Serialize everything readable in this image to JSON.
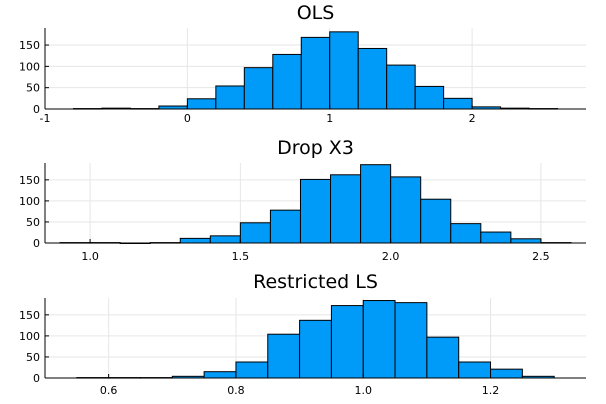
{
  "chart_data": [
    {
      "type": "bar",
      "title": "OLS",
      "xlabel": "",
      "ylabel": "",
      "xlim": [
        -1.0,
        2.8
      ],
      "ylim": [
        0,
        190
      ],
      "xticks": [
        -1,
        0,
        1,
        2
      ],
      "xtick_labels": [
        "-1",
        "0",
        "1",
        "2"
      ],
      "yticks": [
        0,
        50,
        100,
        150
      ],
      "ytick_labels": [
        "0",
        "50",
        "100",
        "150"
      ],
      "grid": true,
      "legend": "none",
      "bin_edges": [
        -0.8,
        -0.6,
        -0.4,
        -0.2,
        0.0,
        0.2,
        0.4,
        0.6,
        0.8,
        1.0,
        1.2,
        1.4,
        1.6,
        1.8,
        2.0,
        2.2,
        2.4,
        2.6
      ],
      "values": [
        1,
        2,
        1,
        7,
        24,
        54,
        97,
        128,
        168,
        181,
        142,
        103,
        53,
        25,
        5,
        2,
        1
      ],
      "color": "#009af9"
    },
    {
      "type": "bar",
      "title": "Drop X3",
      "xlabel": "",
      "ylabel": "",
      "xlim": [
        0.85,
        2.65
      ],
      "ylim": [
        0,
        190
      ],
      "xticks": [
        1.0,
        1.5,
        2.0,
        2.5
      ],
      "xtick_labels": [
        "1.0",
        "1.5",
        "2.0",
        "2.5"
      ],
      "yticks": [
        0,
        50,
        100,
        150
      ],
      "ytick_labels": [
        "0",
        "50",
        "100",
        "150"
      ],
      "grid": true,
      "legend": "none",
      "bin_edges": [
        0.9,
        1.0,
        1.1,
        1.2,
        1.3,
        1.4,
        1.5,
        1.6,
        1.7,
        1.8,
        1.9,
        2.0,
        2.1,
        2.2,
        2.3,
        2.4,
        2.5,
        2.6
      ],
      "values": [
        1,
        1,
        0,
        1,
        11,
        17,
        48,
        78,
        151,
        162,
        186,
        157,
        104,
        46,
        26,
        10,
        1
      ],
      "color": "#009af9"
    },
    {
      "type": "bar",
      "title": "Restricted LS",
      "xlabel": "",
      "ylabel": "",
      "xlim": [
        0.5,
        1.35
      ],
      "ylim": [
        0,
        190
      ],
      "xticks": [
        0.6,
        0.8,
        1.0,
        1.2
      ],
      "xtick_labels": [
        "0.6",
        "0.8",
        "1.0",
        "1.2"
      ],
      "yticks": [
        0,
        50,
        100,
        150
      ],
      "ytick_labels": [
        "0",
        "50",
        "100",
        "150"
      ],
      "grid": true,
      "legend": "none",
      "bin_edges": [
        0.55,
        0.6,
        0.65,
        0.7,
        0.75,
        0.8,
        0.85,
        0.9,
        0.95,
        1.0,
        1.05,
        1.1,
        1.15,
        1.2,
        1.25,
        1.3
      ],
      "values": [
        1,
        1,
        1,
        4,
        15,
        38,
        104,
        137,
        172,
        184,
        179,
        97,
        38,
        21,
        4
      ],
      "color": "#009af9"
    }
  ]
}
